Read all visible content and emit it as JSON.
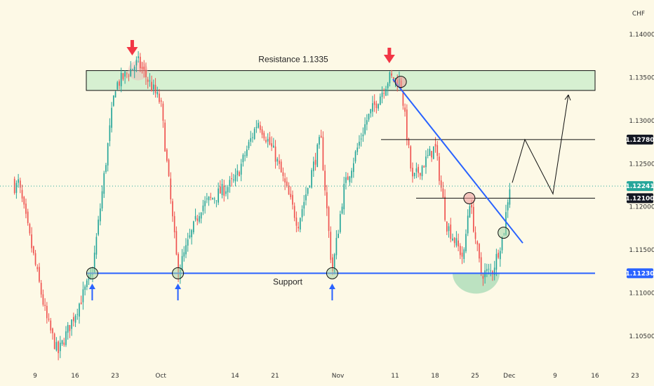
{
  "chart_data": {
    "type": "candlestick",
    "currency": "CHF",
    "y_ticks": [
      "1.14000",
      "1.13500",
      "1.13000",
      "1.12500",
      "1.12000",
      "1.11500",
      "1.11000",
      "1.10500"
    ],
    "ylim": [
      1.1015,
      1.144
    ],
    "x_ticks": [
      "9",
      "16",
      "23",
      "Oct",
      "14",
      "21",
      "Nov",
      "11",
      "18",
      "25",
      "Dec",
      "9",
      "16",
      "23"
    ],
    "price_badges": [
      {
        "value": "1.12780",
        "style": "black"
      },
      {
        "value": "1.12241",
        "style": "green"
      },
      {
        "value": "1.12100",
        "style": "black"
      },
      {
        "value": "1.11230",
        "style": "blue"
      }
    ],
    "annotations": {
      "resistance_label": "Resistance 1.1335",
      "support_label": "Support",
      "resistance_zone": [
        1.1335,
        1.1358
      ],
      "support_level": 1.1123,
      "level_1": 1.1278,
      "level_2": 1.121,
      "current_price": 1.12241
    },
    "key_points": [
      {
        "x": "Sep 6",
        "close": 1.123
      },
      {
        "x": "Sep 11",
        "low": 1.107
      },
      {
        "x": "Sep 13",
        "low": 1.103
      },
      {
        "x": "Sep 19",
        "low": 1.1123
      },
      {
        "x": "Sep 23",
        "high": 1.134
      },
      {
        "x": "Sep 27",
        "high": 1.1368
      },
      {
        "x": "Oct 1",
        "close": 1.132
      },
      {
        "x": "Oct 4",
        "low": 1.1124
      },
      {
        "x": "Oct 8",
        "close": 1.12
      },
      {
        "x": "Oct 14",
        "close": 1.123
      },
      {
        "x": "Oct 18",
        "close": 1.13
      },
      {
        "x": "Oct 21",
        "close": 1.126
      },
      {
        "x": "Oct 25",
        "low": 1.118
      },
      {
        "x": "Oct 29",
        "close": 1.128
      },
      {
        "x": "Oct 31",
        "low": 1.1123
      },
      {
        "x": "Nov 2",
        "close": 1.122
      },
      {
        "x": "Nov 6",
        "close": 1.13
      },
      {
        "x": "Nov 10",
        "high": 1.135
      },
      {
        "x": "Nov 12",
        "high": 1.1345
      },
      {
        "x": "Nov 14",
        "close": 1.123
      },
      {
        "x": "Nov 18",
        "close": 1.127
      },
      {
        "x": "Nov 20",
        "close": 1.118
      },
      {
        "x": "Nov 23",
        "low": 1.114
      },
      {
        "x": "Nov 24",
        "high": 1.121
      },
      {
        "x": "Nov 26",
        "low": 1.1123
      },
      {
        "x": "Nov 28",
        "low": 1.1125
      },
      {
        "x": "Nov 30",
        "close": 1.117
      },
      {
        "x": "Dec 1",
        "close": 1.1224
      }
    ]
  }
}
